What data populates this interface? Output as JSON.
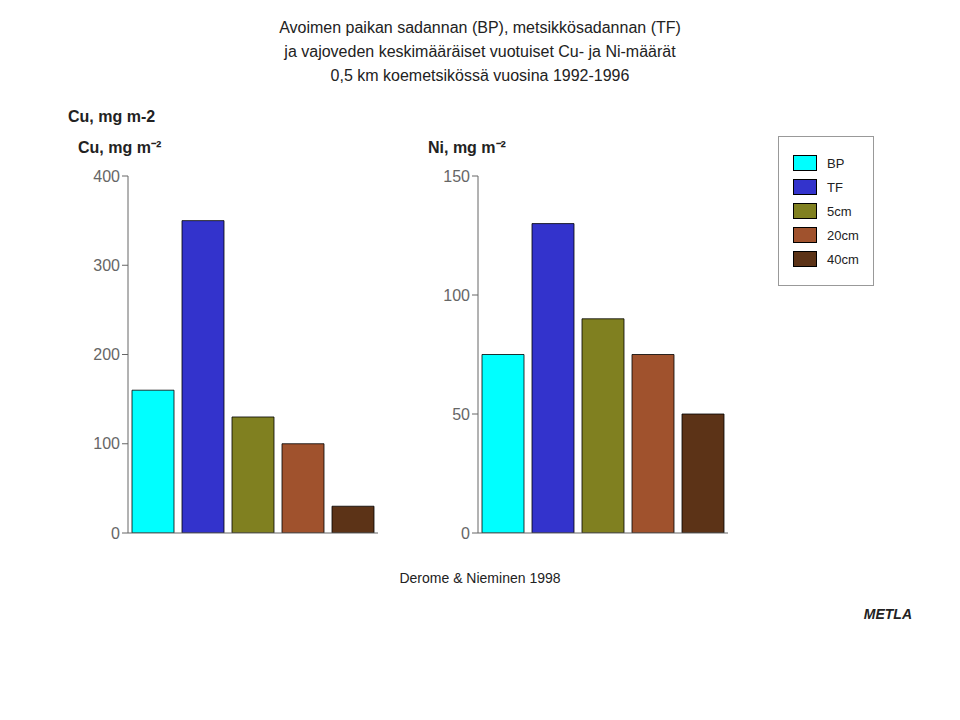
{
  "title": "Avoimen paikan sadannan (BP), metsikkösadannan (TF)\nja vajoveden keskimääräiset vuotuiset Cu- ja Ni-määrät\n0,5 km koemetsikössä vuosina 1992-1996",
  "legend": "upper right",
  "annotations": [
    "Cu, mg m-2",
    "Derome & Nieminen 1998",
    "METLA"
  ],
  "chart_data": [
    {
      "type": "bar",
      "title": "Cu, mg m⁻²",
      "categories": [
        "BP",
        "TF",
        "5cm",
        "20cm",
        "40cm"
      ],
      "values": [
        160,
        350,
        130,
        100,
        30
      ],
      "colors": [
        "#00FFFF",
        "#3333CC",
        "#808020",
        "#A0522D",
        "#5C3317"
      ],
      "ylim": [
        0,
        400
      ],
      "yticks": [
        0,
        100,
        200,
        300,
        400
      ],
      "tick_labels": "y",
      "grid": false
    },
    {
      "type": "bar",
      "title": "Ni, mg m⁻²",
      "categories": [
        "BP",
        "TF",
        "5cm",
        "20cm",
        "40cm"
      ],
      "values": [
        75,
        130,
        90,
        75,
        50
      ],
      "colors": [
        "#00FFFF",
        "#3333CC",
        "#808020",
        "#A0522D",
        "#5C3317"
      ],
      "ylim": [
        0,
        150
      ],
      "yticks": [
        0,
        50,
        100,
        150
      ],
      "tick_labels": "y",
      "grid": false
    }
  ]
}
